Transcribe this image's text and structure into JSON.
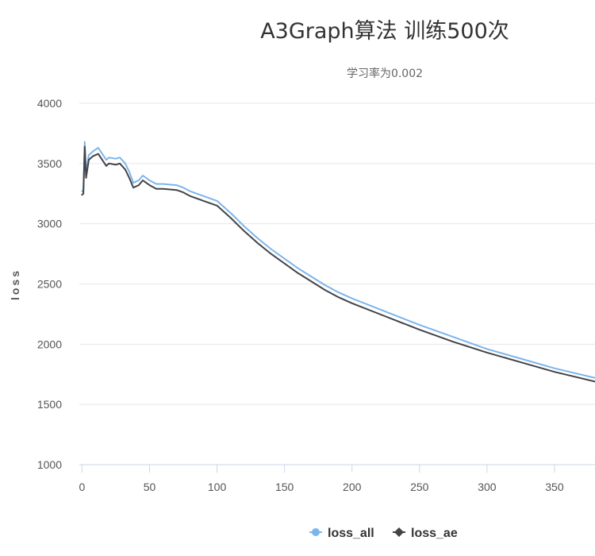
{
  "chart_data": {
    "type": "line",
    "title": "A3Graph算法 训练500次",
    "subtitle": "学习率为0.002",
    "xlabel": "",
    "ylabel": "loss",
    "xlim": [
      -2,
      380
    ],
    "ylim": [
      1000,
      4000
    ],
    "xticks": [
      0,
      50,
      100,
      150,
      200,
      250,
      300,
      350
    ],
    "yticks": [
      1000,
      1500,
      2000,
      2500,
      3000,
      3500,
      4000
    ],
    "grid": true,
    "legend_position": "bottom-center",
    "series": [
      {
        "name": "loss_all",
        "color": "#7cb5ec",
        "marker": "circle",
        "points": [
          [
            0,
            3270
          ],
          [
            1,
            3280
          ],
          [
            2,
            3680
          ],
          [
            3,
            3420
          ],
          [
            5,
            3570
          ],
          [
            8,
            3600
          ],
          [
            12,
            3630
          ],
          [
            15,
            3580
          ],
          [
            18,
            3530
          ],
          [
            20,
            3550
          ],
          [
            25,
            3540
          ],
          [
            28,
            3550
          ],
          [
            32,
            3500
          ],
          [
            35,
            3430
          ],
          [
            38,
            3340
          ],
          [
            42,
            3360
          ],
          [
            45,
            3400
          ],
          [
            50,
            3360
          ],
          [
            55,
            3330
          ],
          [
            60,
            3330
          ],
          [
            70,
            3320
          ],
          [
            75,
            3300
          ],
          [
            80,
            3270
          ],
          [
            90,
            3230
          ],
          [
            100,
            3190
          ],
          [
            110,
            3090
          ],
          [
            120,
            2980
          ],
          [
            130,
            2880
          ],
          [
            140,
            2790
          ],
          [
            150,
            2710
          ],
          [
            160,
            2630
          ],
          [
            170,
            2560
          ],
          [
            180,
            2490
          ],
          [
            190,
            2430
          ],
          [
            200,
            2380
          ],
          [
            225,
            2270
          ],
          [
            250,
            2160
          ],
          [
            275,
            2060
          ],
          [
            300,
            1960
          ],
          [
            325,
            1880
          ],
          [
            350,
            1800
          ],
          [
            380,
            1720
          ]
        ]
      },
      {
        "name": "loss_ae",
        "color": "#434348",
        "marker": "diamond",
        "points": [
          [
            0,
            3240
          ],
          [
            1,
            3250
          ],
          [
            2,
            3640
          ],
          [
            3,
            3380
          ],
          [
            5,
            3530
          ],
          [
            8,
            3560
          ],
          [
            12,
            3580
          ],
          [
            15,
            3530
          ],
          [
            18,
            3480
          ],
          [
            20,
            3500
          ],
          [
            25,
            3490
          ],
          [
            28,
            3500
          ],
          [
            32,
            3450
          ],
          [
            35,
            3380
          ],
          [
            38,
            3300
          ],
          [
            42,
            3320
          ],
          [
            45,
            3360
          ],
          [
            50,
            3320
          ],
          [
            55,
            3290
          ],
          [
            60,
            3290
          ],
          [
            70,
            3280
          ],
          [
            75,
            3260
          ],
          [
            80,
            3230
          ],
          [
            90,
            3190
          ],
          [
            100,
            3150
          ],
          [
            110,
            3050
          ],
          [
            120,
            2940
          ],
          [
            130,
            2840
          ],
          [
            140,
            2750
          ],
          [
            150,
            2670
          ],
          [
            160,
            2590
          ],
          [
            170,
            2520
          ],
          [
            180,
            2450
          ],
          [
            190,
            2390
          ],
          [
            200,
            2340
          ],
          [
            225,
            2230
          ],
          [
            250,
            2120
          ],
          [
            275,
            2020
          ],
          [
            300,
            1930
          ],
          [
            325,
            1850
          ],
          [
            350,
            1770
          ],
          [
            380,
            1690
          ]
        ]
      }
    ]
  }
}
